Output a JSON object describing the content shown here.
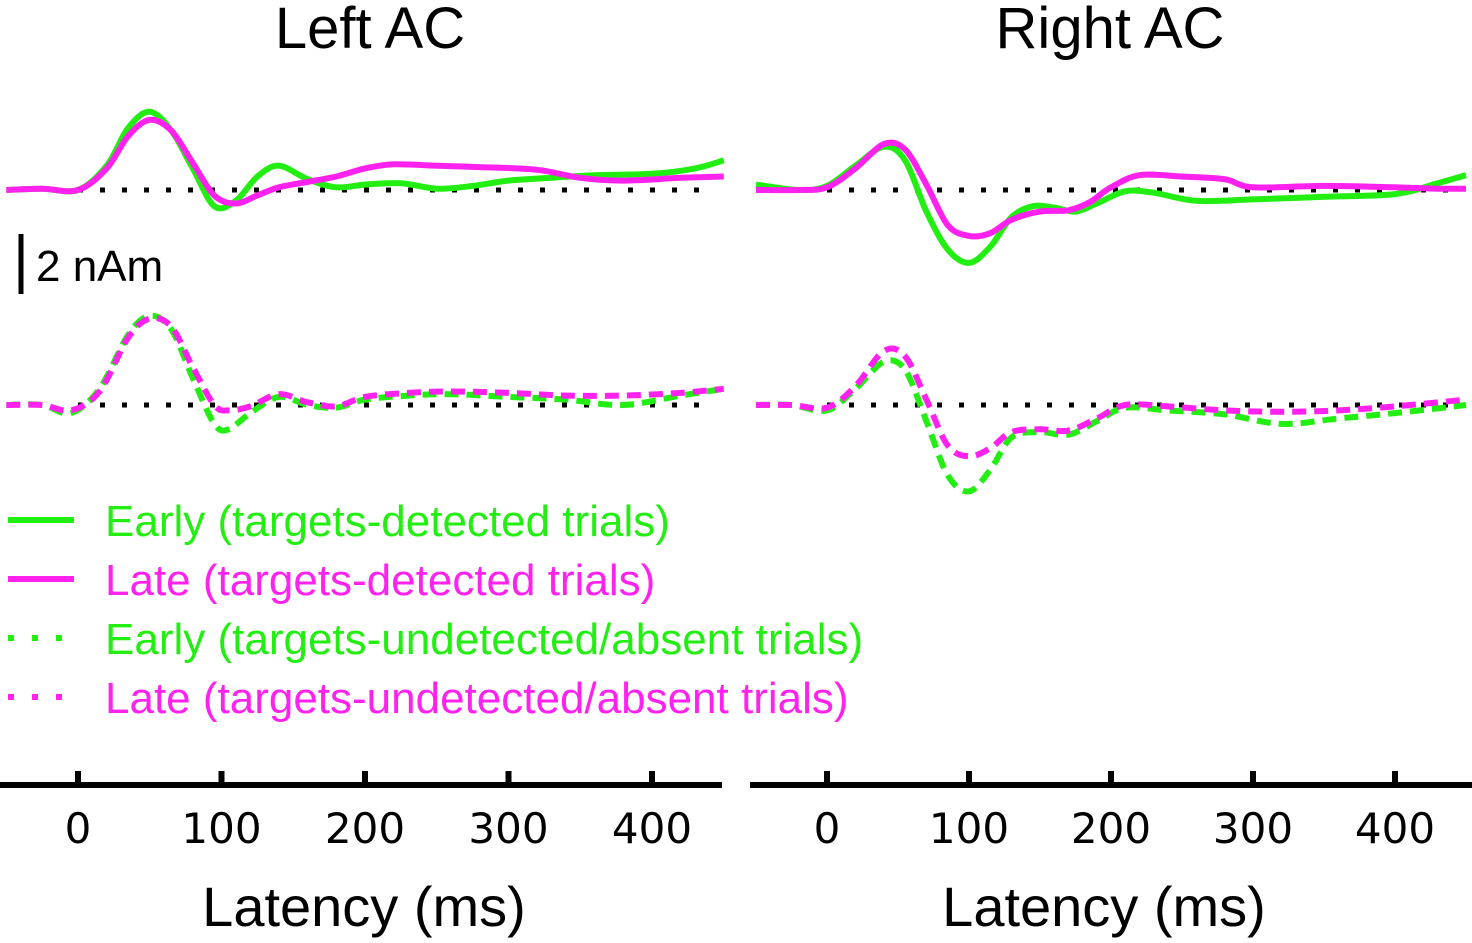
{
  "figure": {
    "scale_bar_label": "2 nAm",
    "legend": [
      {
        "label": "Early (targets-detected trials)",
        "color": "#22ee11",
        "style": "solid"
      },
      {
        "label": "Late (targets-detected trials)",
        "color": "#ff22ee",
        "style": "solid"
      },
      {
        "label": "Early (targets-undetected/absent trials)",
        "color": "#22ee11",
        "style": "dashed"
      },
      {
        "label": "Late (targets-undetected/absent trials)",
        "color": "#ff22ee",
        "style": "dashed"
      }
    ]
  },
  "chart_data": [
    {
      "type": "line",
      "title": "Left AC",
      "xlabel": "Latency (ms)",
      "ylabel": "",
      "xlim": [
        -50,
        450
      ],
      "x_ticks": [
        0,
        100,
        200,
        300,
        400
      ],
      "y_units": "nAm",
      "baseline_style": "dotted",
      "detected_series": [
        {
          "name": "Early (targets-detected trials)",
          "color": "#22ee11",
          "style": "solid",
          "x": [
            -50,
            -25,
            0,
            20,
            35,
            50,
            65,
            80,
            95,
            110,
            125,
            140,
            160,
            180,
            200,
            225,
            250,
            275,
            300,
            330,
            360,
            400,
            430,
            450
          ],
          "y": [
            0.0,
            0.05,
            0.0,
            0.9,
            2.3,
            2.9,
            2.2,
            0.8,
            -0.6,
            -0.4,
            0.5,
            0.9,
            0.4,
            0.1,
            0.2,
            0.25,
            0.05,
            0.15,
            0.35,
            0.45,
            0.55,
            0.6,
            0.8,
            1.1
          ]
        },
        {
          "name": "Late (targets-detected trials)",
          "color": "#ff22ee",
          "style": "solid",
          "x": [
            -50,
            -25,
            0,
            20,
            35,
            50,
            65,
            80,
            95,
            110,
            125,
            140,
            160,
            180,
            200,
            220,
            250,
            280,
            320,
            350,
            380,
            420,
            450
          ],
          "y": [
            0.0,
            0.05,
            0.0,
            0.8,
            2.0,
            2.6,
            2.2,
            1.0,
            -0.2,
            -0.5,
            -0.2,
            0.1,
            0.3,
            0.5,
            0.8,
            0.95,
            0.9,
            0.85,
            0.75,
            0.45,
            0.35,
            0.45,
            0.5
          ]
        }
      ],
      "undetected_series": [
        {
          "name": "Early (targets-undetected/absent trials)",
          "color": "#22ee11",
          "style": "dashed",
          "x": [
            -50,
            -25,
            -5,
            15,
            35,
            50,
            65,
            80,
            95,
            105,
            120,
            140,
            160,
            180,
            200,
            230,
            260,
            300,
            340,
            380,
            420,
            450
          ],
          "y": [
            0.0,
            0.0,
            -0.3,
            0.6,
            2.6,
            3.3,
            2.8,
            1.0,
            -0.7,
            -0.9,
            -0.3,
            0.3,
            0.0,
            -0.1,
            0.2,
            0.35,
            0.4,
            0.3,
            0.2,
            0.0,
            0.35,
            0.6
          ]
        },
        {
          "name": "Late (targets-undetected/absent trials)",
          "color": "#ff22ee",
          "style": "dashed",
          "x": [
            -50,
            -25,
            -5,
            15,
            35,
            50,
            65,
            80,
            95,
            105,
            120,
            140,
            160,
            180,
            200,
            230,
            260,
            300,
            340,
            380,
            420,
            450
          ],
          "y": [
            0.0,
            0.0,
            -0.2,
            0.5,
            2.5,
            3.2,
            2.9,
            1.4,
            0.0,
            -0.2,
            -0.05,
            0.4,
            0.1,
            -0.05,
            0.3,
            0.45,
            0.5,
            0.45,
            0.35,
            0.35,
            0.45,
            0.6
          ]
        }
      ]
    },
    {
      "type": "line",
      "title": "Right AC",
      "xlabel": "Latency (ms)",
      "ylabel": "",
      "xlim": [
        -50,
        450
      ],
      "x_ticks": [
        0,
        100,
        200,
        300,
        400
      ],
      "y_units": "nAm",
      "baseline_style": "dotted",
      "detected_series": [
        {
          "name": "Early (targets-detected trials)",
          "color": "#22ee11",
          "style": "solid",
          "x": [
            -50,
            -20,
            0,
            20,
            40,
            55,
            70,
            85,
            100,
            115,
            130,
            145,
            160,
            175,
            190,
            210,
            230,
            260,
            300,
            350,
            400,
            430,
            450
          ],
          "y": [
            0.2,
            0.0,
            0.15,
            0.9,
            1.6,
            1.1,
            -0.8,
            -2.2,
            -2.7,
            -2.1,
            -1.0,
            -0.6,
            -0.65,
            -0.8,
            -0.5,
            -0.05,
            -0.1,
            -0.4,
            -0.35,
            -0.25,
            -0.15,
            0.25,
            0.55
          ]
        },
        {
          "name": "Late (targets-detected trials)",
          "color": "#ff22ee",
          "style": "solid",
          "x": [
            -50,
            -20,
            0,
            20,
            40,
            55,
            70,
            85,
            100,
            115,
            130,
            150,
            170,
            185,
            200,
            220,
            250,
            280,
            300,
            350,
            400,
            430,
            450
          ],
          "y": [
            0.0,
            0.0,
            0.1,
            0.8,
            1.7,
            1.5,
            0.2,
            -1.3,
            -1.7,
            -1.6,
            -1.1,
            -0.8,
            -0.75,
            -0.45,
            0.1,
            0.55,
            0.5,
            0.4,
            0.1,
            0.15,
            0.1,
            0.05,
            0.05
          ]
        }
      ],
      "undetected_series": [
        {
          "name": "Early (targets-undetected/absent trials)",
          "color": "#22ee11",
          "style": "dashed",
          "x": [
            -50,
            -25,
            0,
            20,
            40,
            55,
            70,
            85,
            100,
            115,
            130,
            150,
            170,
            190,
            210,
            240,
            280,
            320,
            360,
            400,
            450
          ],
          "y": [
            0.0,
            0.0,
            -0.2,
            0.6,
            1.6,
            1.3,
            -0.6,
            -2.6,
            -3.2,
            -2.4,
            -1.2,
            -1.0,
            -1.1,
            -0.6,
            -0.1,
            -0.2,
            -0.35,
            -0.7,
            -0.5,
            -0.3,
            0.0
          ]
        },
        {
          "name": "Late (targets-undetected/absent trials)",
          "color": "#ff22ee",
          "style": "dashed",
          "x": [
            -50,
            -25,
            0,
            20,
            40,
            55,
            70,
            85,
            100,
            115,
            130,
            150,
            170,
            190,
            210,
            240,
            280,
            320,
            360,
            400,
            450
          ],
          "y": [
            0.0,
            0.0,
            -0.1,
            0.7,
            2.0,
            1.8,
            0.2,
            -1.5,
            -1.9,
            -1.6,
            -1.0,
            -0.9,
            -0.95,
            -0.5,
            0.0,
            -0.05,
            -0.2,
            -0.25,
            -0.2,
            -0.05,
            0.2
          ]
        }
      ]
    }
  ]
}
